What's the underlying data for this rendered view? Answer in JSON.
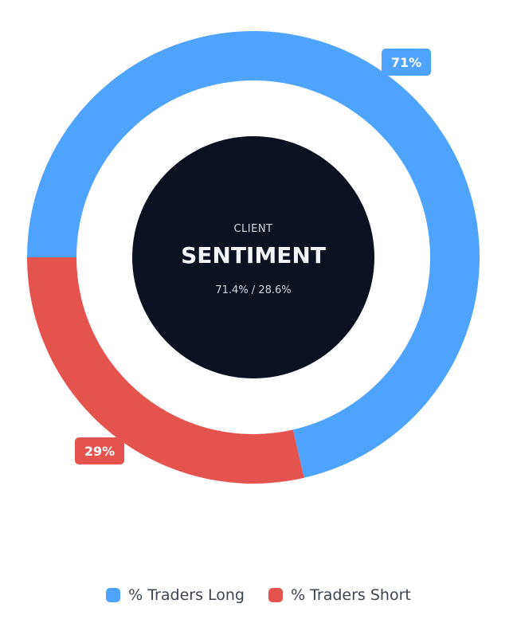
{
  "chart_data": {
    "type": "pie",
    "categories": [
      "% Traders Long",
      "% Traders Short"
    ],
    "values": [
      71.4,
      28.6
    ],
    "data_labels": [
      "71%",
      "29%"
    ],
    "colors": [
      "#4ea4fc",
      "#e5534e"
    ],
    "center": {
      "kicker": "CLIENT",
      "title": "SENTIMENT",
      "ratio": "71.4% / 28.6%",
      "color": "#0b1120"
    },
    "legend": "bottom-center"
  }
}
